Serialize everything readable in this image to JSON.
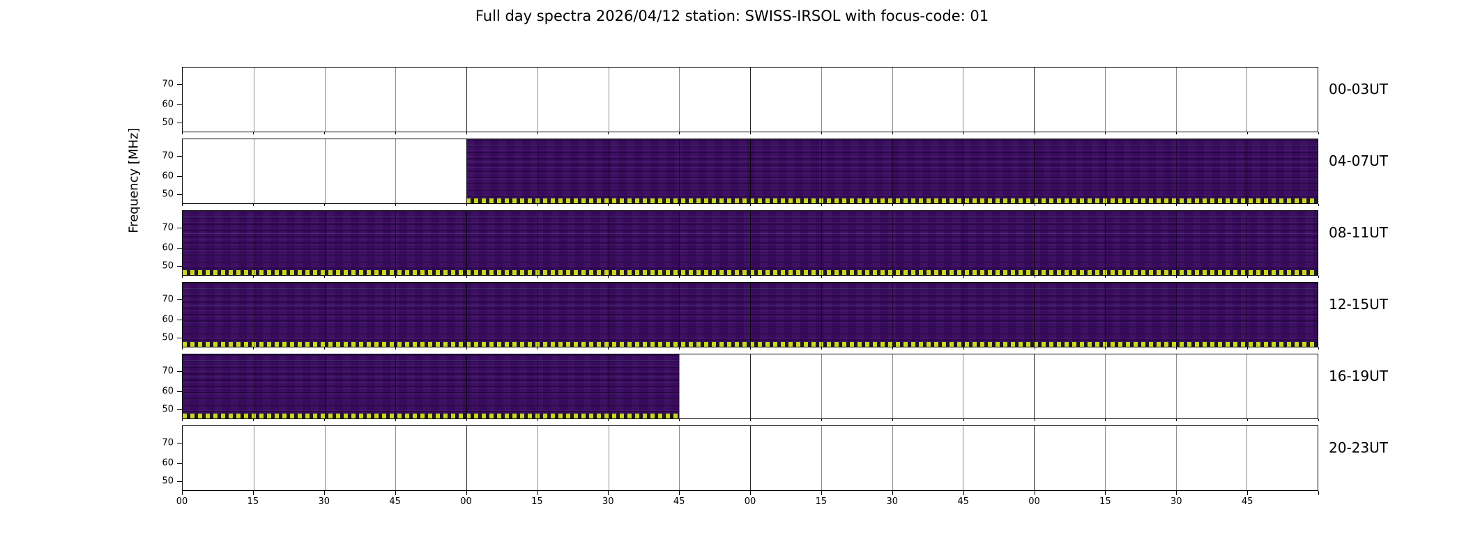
{
  "title": "Full day spectra 2026/04/12 station: SWISS-IRSOL with focus-code: 01",
  "chart_data": {
    "type": "heatmap",
    "title": "Full day spectra 2026/04/12 station: SWISS-IRSOL with focus-code: 01",
    "ylabel": "Frequency [MHz]",
    "y_ticks": [
      "70",
      "60",
      "50"
    ],
    "y_range_mhz_est": [
      45,
      80
    ],
    "x_tick_labels": [
      "00",
      "15",
      "30",
      "45",
      "00",
      "15",
      "30",
      "45",
      "00",
      "15",
      "30",
      "45",
      "00",
      "15",
      "30",
      "45"
    ],
    "segments_per_panel": 16,
    "minutes_per_segment": 15,
    "grid": true,
    "legend": "none",
    "colors": {
      "spectrogram_base": "#380a5c",
      "strip_yellow": "#cdd327",
      "strip_dark": "#1b1b1b",
      "background": "#ffffff",
      "axes": "#000000"
    },
    "panels": [
      {
        "label": "00-03UT",
        "hours": "00:00-04:00",
        "has_data": false,
        "coverage": []
      },
      {
        "label": "04-07UT",
        "hours": "04:00-08:00",
        "has_data": true,
        "coverage": [
          {
            "start_frac": 0.25,
            "end_frac": 1.0,
            "start_time": "05:00",
            "end_time": "08:00"
          }
        ]
      },
      {
        "label": "08-11UT",
        "hours": "08:00-12:00",
        "has_data": true,
        "coverage": [
          {
            "start_frac": 0.0,
            "end_frac": 1.0,
            "start_time": "08:00",
            "end_time": "12:00"
          }
        ]
      },
      {
        "label": "12-15UT",
        "hours": "12:00-16:00",
        "has_data": true,
        "coverage": [
          {
            "start_frac": 0.0,
            "end_frac": 1.0,
            "start_time": "12:00",
            "end_time": "16:00"
          }
        ]
      },
      {
        "label": "16-19UT",
        "hours": "16:00-20:00",
        "has_data": true,
        "coverage": [
          {
            "start_frac": 0.0,
            "end_frac": 0.4375,
            "start_time": "16:00",
            "end_time": "17:45"
          }
        ]
      },
      {
        "label": "20-23UT",
        "hours": "20:00-24:00",
        "has_data": false,
        "coverage": []
      }
    ]
  }
}
